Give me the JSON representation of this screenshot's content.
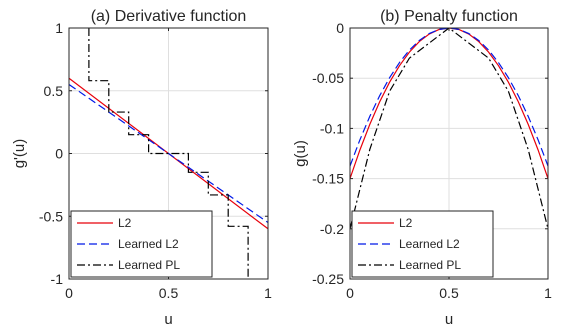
{
  "chart_data": [
    {
      "type": "line",
      "title": "(a) Derivative function",
      "xlabel": "u",
      "ylabel": "g'(u)",
      "xlim": [
        0,
        1
      ],
      "ylim": [
        -1,
        1
      ],
      "grid": true,
      "legend_position": "bottom-left",
      "x_ticks": [
        "0",
        "0.5",
        "1"
      ],
      "y_ticks": [
        "-1",
        "-0.5",
        "0",
        "0.5",
        "1"
      ],
      "series": [
        {
          "name": "L2",
          "style": "solid",
          "color": "#e8000b",
          "x": [
            0,
            1
          ],
          "y": [
            0.6,
            -0.6
          ]
        },
        {
          "name": "Learned L2",
          "style": "dashed",
          "color": "#0019e8",
          "x": [
            0,
            1
          ],
          "y": [
            0.55,
            -0.55
          ]
        },
        {
          "name": "Learned PL",
          "style": "dashdot",
          "color": "#000000",
          "x": [
            0.1,
            0.1,
            0.2,
            0.2,
            0.3,
            0.3,
            0.4,
            0.4,
            0.5,
            0.5,
            0.6,
            0.6,
            0.7,
            0.7,
            0.8,
            0.8,
            0.9,
            0.9
          ],
          "y": [
            1.0,
            0.58,
            0.58,
            0.33,
            0.33,
            0.15,
            0.15,
            0.0,
            0.0,
            0.0,
            0.0,
            -0.15,
            -0.15,
            -0.33,
            -0.33,
            -0.58,
            -0.58,
            -1.0
          ]
        }
      ]
    },
    {
      "type": "line",
      "title": "(b) Penalty function",
      "xlabel": "u",
      "ylabel": "g(u)",
      "xlim": [
        0,
        1
      ],
      "ylim": [
        -0.25,
        0
      ],
      "grid": true,
      "legend_position": "bottom-left",
      "x_ticks": [
        "0",
        "0.5",
        "1"
      ],
      "y_ticks": [
        "-0.25",
        "-0.2",
        "-0.15",
        "-0.1",
        "-0.05",
        "0"
      ],
      "series": [
        {
          "name": "L2",
          "style": "solid",
          "color": "#e8000b",
          "x": [
            0,
            0.05,
            0.1,
            0.15,
            0.2,
            0.25,
            0.3,
            0.35,
            0.4,
            0.45,
            0.5,
            0.55,
            0.6,
            0.65,
            0.7,
            0.75,
            0.8,
            0.85,
            0.9,
            0.95,
            1
          ],
          "y": [
            -0.15,
            -0.1215,
            -0.096,
            -0.0735,
            -0.054,
            -0.0375,
            -0.024,
            -0.0135,
            -0.006,
            -0.0015,
            0,
            -0.0015,
            -0.006,
            -0.0135,
            -0.024,
            -0.0375,
            -0.054,
            -0.0735,
            -0.096,
            -0.1215,
            -0.15
          ]
        },
        {
          "name": "Learned L2",
          "style": "dashed",
          "color": "#0019e8",
          "x": [
            0,
            0.05,
            0.1,
            0.15,
            0.2,
            0.25,
            0.3,
            0.35,
            0.4,
            0.45,
            0.5,
            0.55,
            0.6,
            0.65,
            0.7,
            0.75,
            0.8,
            0.85,
            0.9,
            0.95,
            1
          ],
          "y": [
            -0.1375,
            -0.1114,
            -0.088,
            -0.0674,
            -0.0495,
            -0.0344,
            -0.022,
            -0.0124,
            -0.0055,
            -0.0014,
            0,
            -0.0014,
            -0.0055,
            -0.0124,
            -0.022,
            -0.0344,
            -0.0495,
            -0.0674,
            -0.088,
            -0.1114,
            -0.1375
          ]
        },
        {
          "name": "Learned PL",
          "style": "dashdot",
          "color": "#000000",
          "x": [
            0,
            0.1,
            0.2,
            0.3,
            0.4,
            0.5,
            0.6,
            0.7,
            0.8,
            0.9,
            1
          ],
          "y": [
            -0.2,
            -0.121,
            -0.063,
            -0.03,
            -0.015,
            0,
            -0.015,
            -0.03,
            -0.063,
            -0.121,
            -0.2
          ]
        }
      ]
    }
  ]
}
